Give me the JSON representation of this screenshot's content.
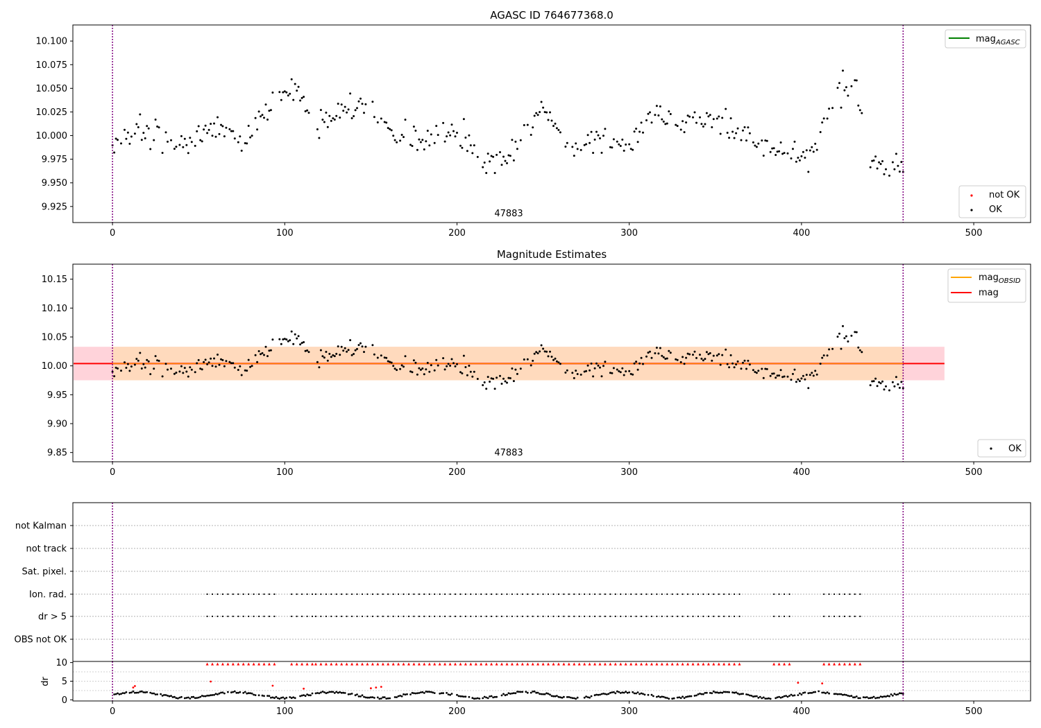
{
  "figure": {
    "top_title": "AGASC ID 764677368.0",
    "middle_title": "Magnitude Estimates",
    "obsid_label": "47883"
  },
  "colors": {
    "ok": "#000000",
    "not_ok": "#ff0000",
    "mag_agasc": "#008000",
    "mag_obsid": "#ffa500",
    "mag": "#ff0000",
    "band_obsid": "#ffdab9",
    "band_mag": "#ffc0cb",
    "vline": "#800080"
  },
  "chart_data": [
    {
      "type": "scatter",
      "title": "AGASC ID 764677368.0",
      "xlim": [
        -23,
        533
      ],
      "ylim": [
        9.908,
        10.117
      ],
      "xticks": [
        0,
        100,
        200,
        300,
        400,
        500
      ],
      "yticks": [
        9.925,
        9.95,
        9.975,
        10.0,
        10.025,
        10.05,
        10.075,
        10.1
      ],
      "ytick_labels": [
        "9.925",
        "9.950",
        "9.975",
        "10.000",
        "10.025",
        "10.050",
        "10.075",
        "10.100"
      ],
      "vlines": [
        0,
        459
      ],
      "annotation": "47883",
      "annotation_x": 229,
      "grid": false,
      "legends": [
        {
          "placement": "upper right",
          "entries": [
            {
              "label": "mag",
              "subscript": "AGASC",
              "kind": "line",
              "color_key": "mag_agasc"
            }
          ]
        },
        {
          "placement": "lower right",
          "entries": [
            {
              "label": "not OK",
              "kind": "dot",
              "color_key": "not_ok"
            },
            {
              "label": "OK",
              "kind": "dot",
              "color_key": "ok"
            }
          ]
        }
      ],
      "series": [
        {
          "name": "OK",
          "x": [],
          "y": []
        },
        {
          "name": "not OK",
          "x": [],
          "y": []
        }
      ]
    },
    {
      "type": "scatter",
      "title": "Magnitude Estimates",
      "xlim": [
        -23,
        533
      ],
      "ylim": [
        9.834,
        10.176
      ],
      "xticks": [
        0,
        100,
        200,
        300,
        400,
        500
      ],
      "yticks": [
        9.85,
        9.9,
        9.95,
        10.0,
        10.05,
        10.1,
        10.15
      ],
      "ytick_labels": [
        "9.85",
        "9.90",
        "9.95",
        "10.00",
        "10.05",
        "10.10",
        "10.15"
      ],
      "vlines": [
        0,
        459
      ],
      "annotation": "47883",
      "annotation_x": 229,
      "grid": false,
      "mag_obsid": {
        "value": 10.004,
        "band": [
          9.975,
          10.033
        ],
        "x_range": [
          -23,
          483
        ]
      },
      "mag": {
        "value": 10.004,
        "band": [
          9.975,
          10.033
        ],
        "x_range": [
          -23,
          483
        ]
      },
      "legends": [
        {
          "placement": "upper right",
          "entries": [
            {
              "label": "mag",
              "subscript": "OBSID",
              "kind": "line",
              "color_key": "mag_obsid"
            },
            {
              "label": "mag",
              "subscript": "",
              "kind": "line",
              "color_key": "mag"
            }
          ]
        },
        {
          "placement": "lower right",
          "entries": [
            {
              "label": "OK",
              "kind": "dot",
              "color_key": "ok"
            }
          ]
        }
      ]
    },
    {
      "type": "scatter",
      "xlim": [
        -23,
        533
      ],
      "flag_rows": [
        "not Kalman",
        "not track",
        "Sat. pixel.",
        "Ion. rad.",
        "dr > 5",
        "OBS not OK"
      ],
      "flag_ranges": {
        "Ion. rad.": [
          [
            55,
            96
          ],
          [
            104,
            116
          ],
          [
            118,
            365
          ],
          [
            384,
            395
          ],
          [
            413,
            435
          ]
        ],
        "dr > 5": [
          [
            55,
            96
          ],
          [
            104,
            116
          ],
          [
            118,
            365
          ],
          [
            384,
            395
          ],
          [
            413,
            435
          ]
        ]
      },
      "grid": "dotted horizontal"
    },
    {
      "type": "scatter",
      "xlim": [
        -23,
        533
      ],
      "ylim": [
        -0.3,
        10.3
      ],
      "yticks": [
        0,
        5,
        10
      ],
      "ylabel": "dr",
      "xticks": [
        0,
        100,
        200,
        300,
        400,
        500
      ],
      "vlines": [
        0,
        459
      ],
      "dr_threshold_marks_y": 10,
      "dr_threshold_ranges": [
        [
          55,
          96
        ],
        [
          104,
          116
        ],
        [
          118,
          365
        ],
        [
          384,
          395
        ],
        [
          413,
          435
        ]
      ],
      "series": [
        {
          "name": "OK",
          "x": [],
          "y": []
        },
        {
          "name": "not OK",
          "x": [
            12,
            13,
            57,
            93,
            111,
            150,
            153,
            156,
            398,
            412
          ],
          "y": [
            3.3,
            3.7,
            4.9,
            3.8,
            3.0,
            3.1,
            3.3,
            3.5,
            4.6,
            4.4
          ]
        }
      ]
    }
  ]
}
